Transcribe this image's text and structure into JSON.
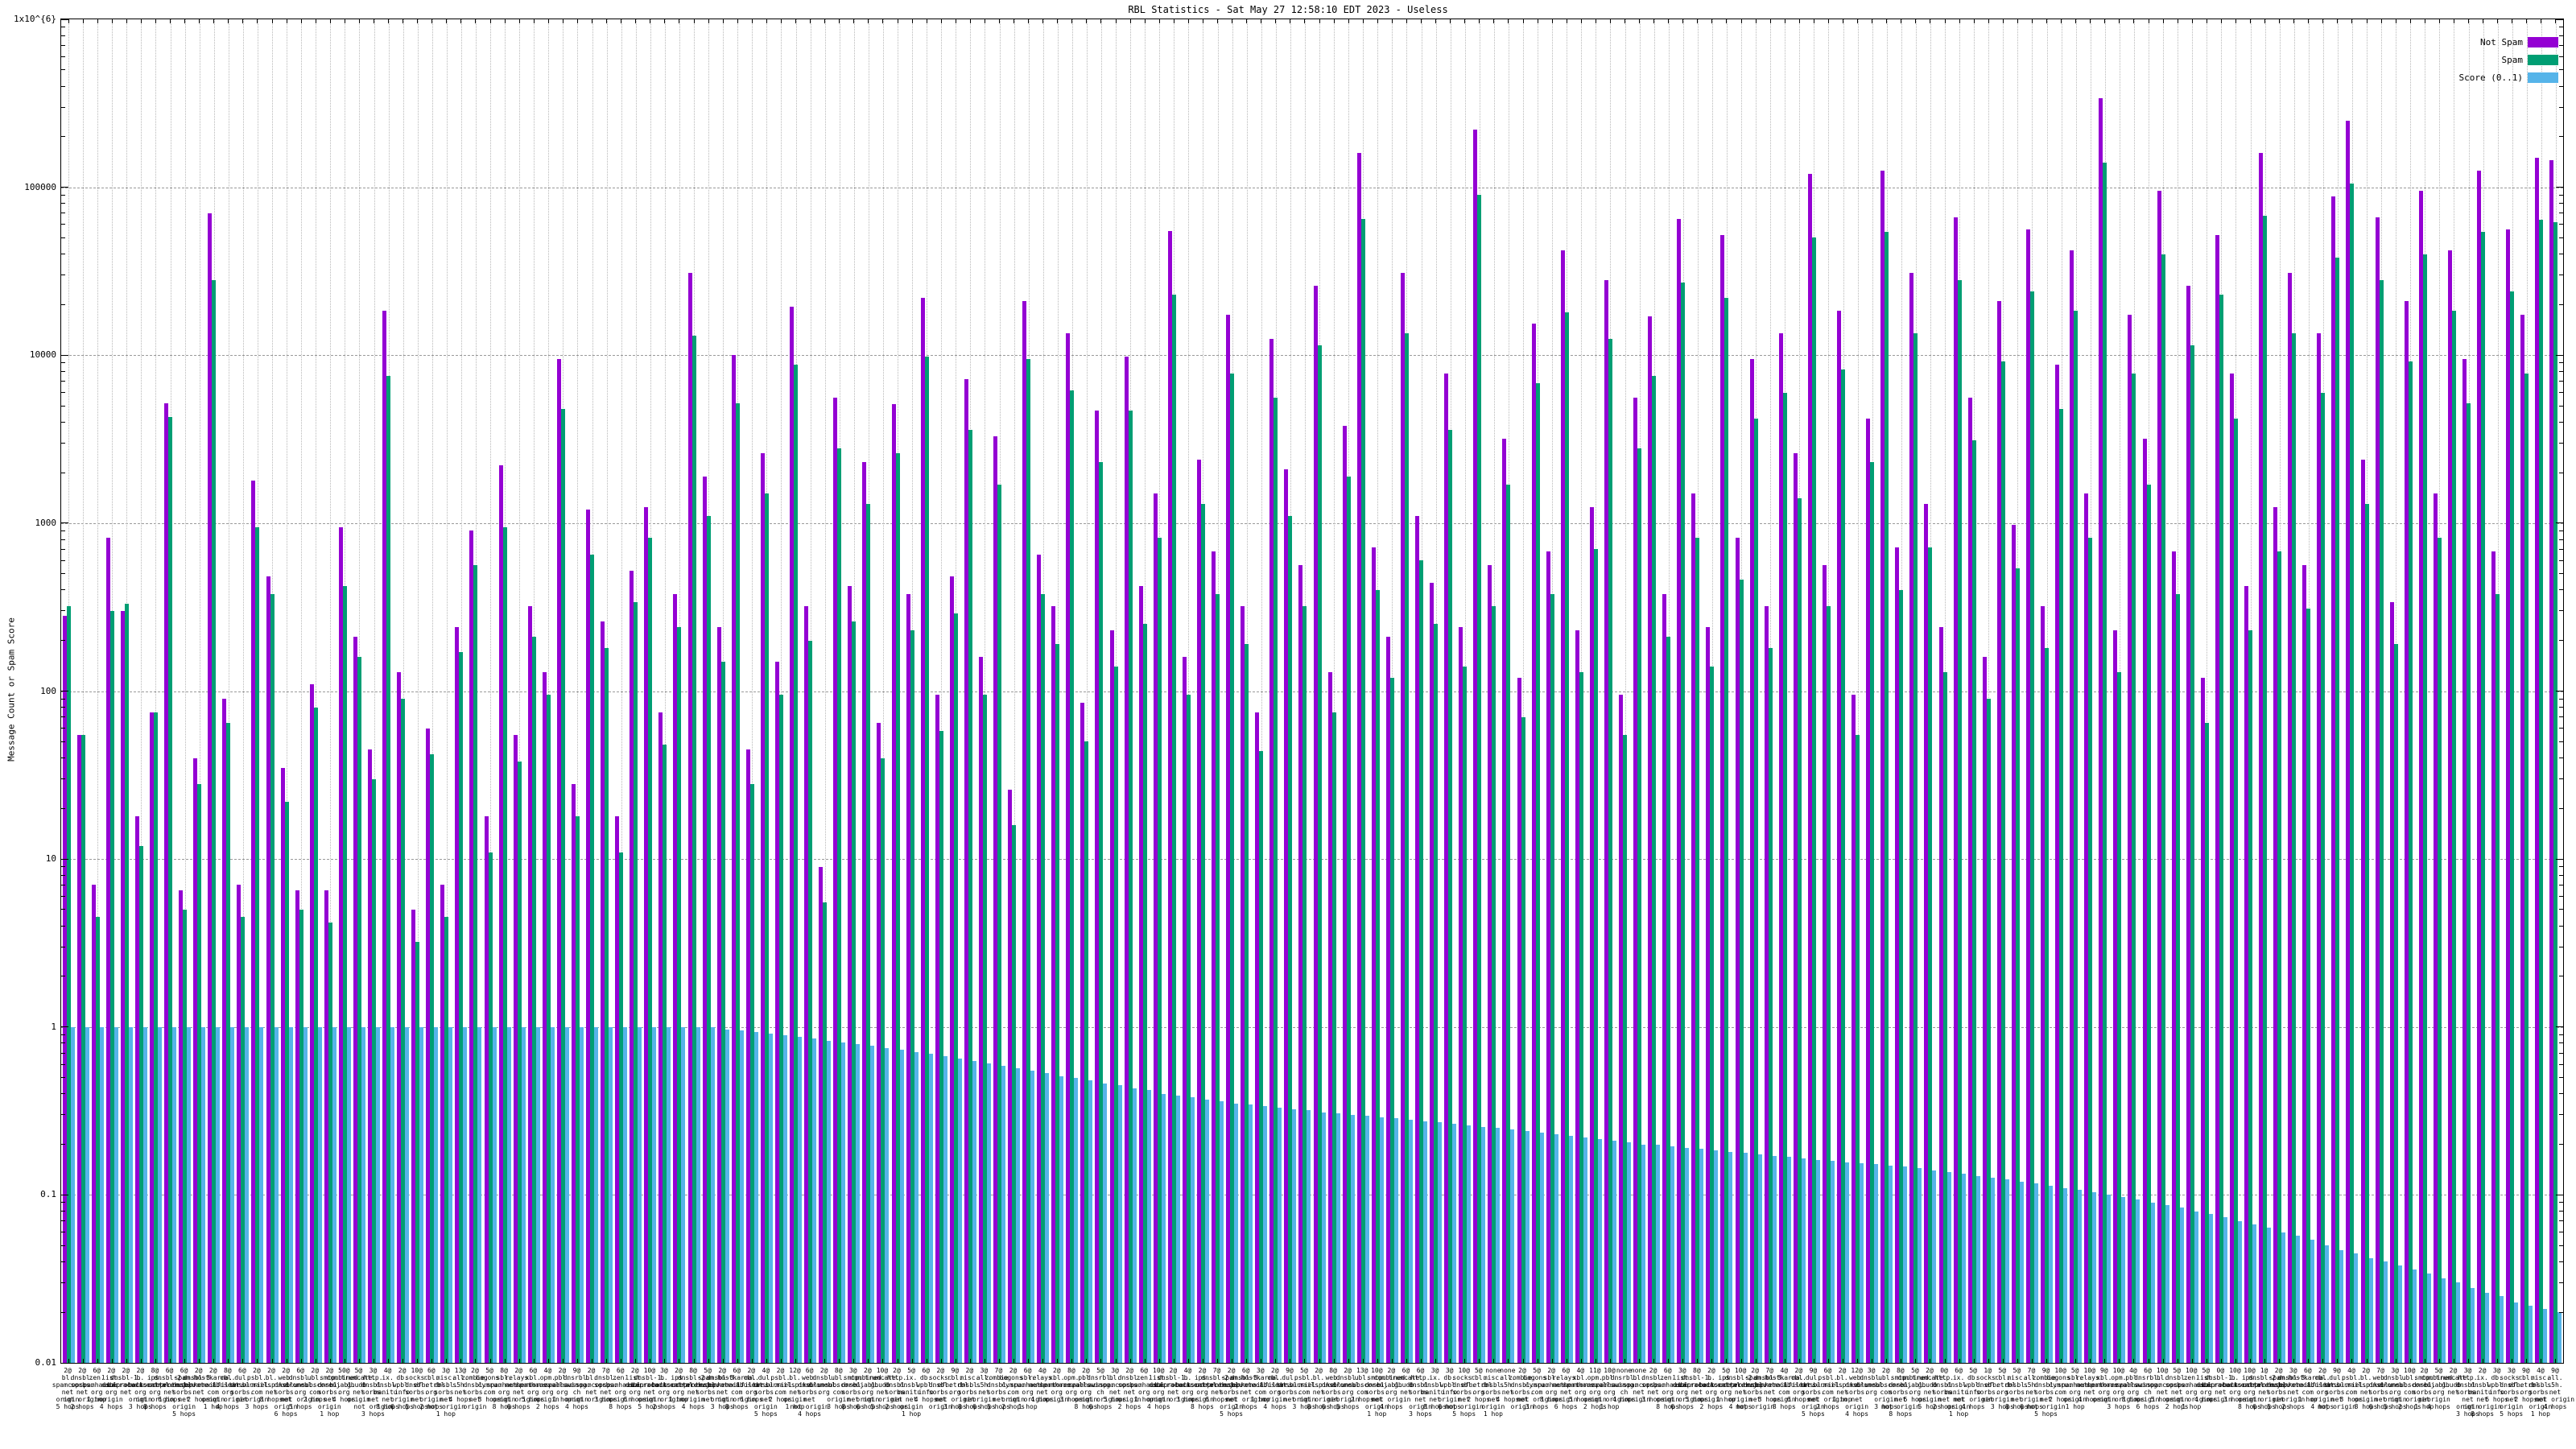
{
  "chart_data": {
    "type": "bar",
    "title": "RBL Statistics - Sat May 27 12:58:10 EDT 2023 - Useless",
    "ylabel": "Message Count or Spam Score",
    "xlabel": "",
    "y_scale": "log",
    "ylim": [
      0.01,
      1000000
    ],
    "y_ticks": [
      "1x10^{6}",
      "100000",
      "10000",
      "1000",
      "100",
      "10",
      "1",
      "0.1",
      "0.01"
    ],
    "grid": "on",
    "legend_position": "top-right",
    "legend": [
      {
        "label": "Not Spam",
        "color": "#9400d3"
      },
      {
        "label": "Spam",
        "color": "#009e73"
      },
      {
        "label": "Score (0..1)",
        "color": "#56b4e9"
      }
    ],
    "groups": {
      "weights": [
        "2@",
        "2@",
        "6@",
        "2@",
        "2@",
        "2@",
        "8@",
        "6@",
        "6@",
        "2@",
        "2@",
        "8@",
        "6@",
        "2@",
        "2@",
        "2@",
        "6@",
        "2@",
        "2@",
        "50@",
        "5@",
        "3@",
        "4@",
        "2@",
        "10@",
        "6@",
        "3@",
        "13@",
        "2@",
        "5@",
        "8@",
        "2@",
        "6@",
        "4@",
        "2@",
        "9@",
        "2@",
        "7@",
        "6@",
        "2@",
        "10@",
        "3@",
        "2@",
        "8@",
        "5@",
        "2@",
        "6@",
        "2@",
        "4@",
        "2@",
        "12@",
        "6@",
        "2@",
        "8@",
        "3@",
        "2@",
        "10@",
        "2@",
        "5@",
        "6@",
        "2@",
        "9@",
        "2@",
        "3@",
        "7@",
        "2@",
        "6@",
        "4@",
        "2@",
        "8@",
        "2@",
        "5@",
        "3@",
        "2@",
        "6@",
        "10@",
        "2@",
        "4@",
        "2@",
        "7@",
        "2@",
        "6@",
        "3@",
        "2@",
        "9@",
        "5@",
        "2@",
        "8@",
        "2@",
        "13@",
        "10@",
        "2@",
        "6@",
        "6@",
        "3@",
        "3@",
        "10@",
        "5@",
        "none",
        "none",
        "2@",
        "5@",
        "2@",
        "6@",
        "4@",
        "11@",
        "10@",
        "none",
        "none",
        "2@",
        "6@",
        "3@",
        "8@",
        "2@",
        "5@",
        "10@",
        "2@",
        "7@",
        "4@",
        "2@",
        "9@",
        "6@",
        "2@",
        "12@",
        "3@",
        "2@",
        "8@",
        "5@",
        "2@",
        "0@",
        "6@",
        "5@",
        "1@",
        "5@",
        "5@",
        "7@",
        "9@",
        "10@",
        "5@",
        "10@",
        "9@",
        "10@",
        "4@",
        "6@",
        "10@",
        "5@",
        "10@",
        "5@",
        "0@",
        "10@",
        "10@",
        "1@",
        "2@",
        "3@",
        "6@",
        "2@",
        "9@",
        "4@",
        "2@",
        "7@",
        "3@",
        "10@",
        "2@",
        "5@",
        "2@",
        "3@",
        "2@",
        "3@",
        "3@",
        "9@",
        "4@",
        "9@"
      ],
      "host_pool": [
        "bl.spamcop.net",
        "dnsbl.sorbs.net",
        "zen.spamhaus.org",
        "list.dsbl.org",
        "dnsbl-1.uceprotect.net",
        "b.barracudacentral.org",
        "ips.backscatterer.org",
        "dnsbl-2.uceprotect.net",
        "spam.dnsbl.sorbs.net",
        "dnsbl-3.uceprotect.net",
        "hostkarma.junkemailfilter.com",
        "cbl.abuseat.org",
        "dul.dnsbl.sorbs.net",
        "psbl.surriel.com",
        "bl.mailspike.net",
        "web.dnsbl.sorbs.net",
        "dnsbl.dronebl.org",
        "ubl.unsubscore.com",
        "smtp.dnsbl.sorbs.net",
        "combined.njabl.org",
        "truncate.gbudb.net",
        "http.dnsbl.sorbs.net",
        "ix.dnsbl.manitu.net",
        "db.wpbl.info",
        "socks.dnsbl.sorbs.net",
        "rbl.efnetrbl.org",
        "misc.dnsbl.sorbs.net",
        "all.s5h.net",
        "zombie.dnsbl.sorbs.net",
        "bogons.cymru.com",
        "sbl.spamhaus.org",
        "relays.nether.net",
        "xbl.spamhaus.org",
        "opm.tornevall.org",
        "pbl.spamhaus.org",
        "dnsrbl.swinog.ch"
      ],
      "mode_pool": [
        "origin",
        "not origin",
        "",
        "origin",
        ""
      ],
      "hops_pool": [
        "5 hops",
        "2 hops",
        "1 hop",
        "4 hops",
        "",
        "3 hops",
        "8 hops",
        "6 hops"
      ]
    },
    "series": [
      {
        "name": "Not Spam",
        "color": "#9400d3",
        "values": [
          280,
          55,
          7,
          820,
          300,
          18,
          75,
          5200,
          6.5,
          40,
          70000,
          90,
          7,
          1800,
          480,
          35,
          6.5,
          110,
          6.5,
          950,
          210,
          45,
          18500,
          130,
          5,
          60,
          7,
          240,
          900,
          18,
          2200,
          55,
          320,
          130,
          9500,
          28,
          1200,
          260,
          18,
          520,
          1250,
          75,
          380,
          31000,
          1900,
          240,
          10000,
          45,
          2600,
          150,
          19500,
          320,
          9,
          5600,
          420,
          2300,
          65,
          5100,
          380,
          22000,
          95,
          480,
          7200,
          160,
          3300,
          26,
          21000,
          650,
          320,
          13500,
          85,
          4700,
          230,
          9800,
          420,
          1500,
          55000,
          160,
          2400,
          680,
          17500,
          320,
          75,
          12500,
          2100,
          560,
          26000,
          130,
          3800,
          160000,
          720,
          210,
          31000,
          1100,
          440,
          7800,
          240,
          220000,
          560,
          3200,
          120,
          15500,
          680,
          42000,
          230,
          1250,
          28000,
          95,
          5600,
          17000,
          380,
          65000,
          1500,
          240,
          52000,
          820,
          9500,
          320,
          13500,
          2600,
          120000,
          560,
          18500,
          95,
          4200,
          125000,
          720,
          31000,
          1300,
          240,
          66000,
          5600,
          160,
          21000,
          980,
          56000,
          320,
          8800,
          42000,
          1500,
          340000,
          230,
          17500,
          3200,
          95000,
          680,
          26000,
          120,
          52000,
          7800,
          420,
          160000,
          1250,
          31000,
          560,
          13500,
          88000,
          250000,
          2400,
          66000,
          340,
          21000,
          95000,
          1500,
          42000,
          9500,
          125000,
          680,
          56000,
          17500,
          150000,
          145000
        ]
      },
      {
        "name": "Spam",
        "color": "#009e73",
        "values": [
          320,
          55,
          4.5,
          300,
          330,
          12,
          75,
          4300,
          5,
          28,
          28000,
          65,
          4.5,
          950,
          380,
          22,
          5,
          80,
          4.2,
          420,
          160,
          30,
          7500,
          90,
          3.2,
          42,
          4.5,
          170,
          560,
          11,
          950,
          38,
          210,
          95,
          4800,
          18,
          650,
          180,
          11,
          340,
          820,
          48,
          240,
          13000,
          1100,
          150,
          5200,
          28,
          1500,
          95,
          8800,
          200,
          5.5,
          2800,
          260,
          1300,
          40,
          2600,
          230,
          9800,
          58,
          290,
          3600,
          95,
          1700,
          16,
          9500,
          380,
          190,
          6200,
          50,
          2300,
          140,
          4700,
          250,
          820,
          23000,
          95,
          1300,
          380,
          7800,
          190,
          44,
          5600,
          1100,
          320,
          11500,
          75,
          1900,
          65000,
          400,
          120,
          13500,
          600,
          250,
          3600,
          140,
          90000,
          320,
          1700,
          70,
          6800,
          380,
          18000,
          130,
          700,
          12500,
          55,
          2800,
          7500,
          210,
          27000,
          820,
          140,
          22000,
          460,
          4200,
          180,
          6000,
          1400,
          50000,
          320,
          8200,
          55,
          2300,
          54000,
          400,
          13500,
          720,
          130,
          28000,
          3100,
          90,
          9200,
          540,
          24000,
          180,
          4800,
          18500,
          820,
          140000,
          130,
          7800,
          1700,
          40000,
          380,
          11500,
          65,
          23000,
          4200,
          230,
          68000,
          680,
          13500,
          310,
          6000,
          38000,
          105000,
          1300,
          28000,
          190,
          9200,
          40000,
          820,
          18500,
          5200,
          54000,
          380,
          24000,
          7800,
          64000,
          62000
        ]
      },
      {
        "name": "Score (0..1)",
        "color": "#56b4e9",
        "values": [
          1,
          1,
          1,
          1,
          1,
          1,
          1,
          1,
          1,
          1,
          1,
          1,
          1,
          1,
          1,
          1,
          1,
          1,
          1,
          1,
          1,
          1,
          1,
          1,
          1,
          1,
          1,
          1,
          1,
          1,
          1,
          1,
          1,
          1,
          1,
          1,
          1,
          1,
          1,
          1,
          1,
          1,
          1,
          1,
          1,
          0.97,
          0.95,
          0.93,
          0.91,
          0.89,
          0.87,
          0.85,
          0.83,
          0.81,
          0.79,
          0.77,
          0.75,
          0.73,
          0.71,
          0.69,
          0.67,
          0.65,
          0.63,
          0.61,
          0.59,
          0.57,
          0.55,
          0.53,
          0.51,
          0.5,
          0.48,
          0.46,
          0.45,
          0.43,
          0.42,
          0.4,
          0.39,
          0.38,
          0.37,
          0.36,
          0.35,
          0.345,
          0.34,
          0.33,
          0.325,
          0.32,
          0.31,
          0.305,
          0.3,
          0.295,
          0.29,
          0.285,
          0.28,
          0.275,
          0.27,
          0.265,
          0.26,
          0.255,
          0.25,
          0.245,
          0.24,
          0.235,
          0.23,
          0.225,
          0.22,
          0.215,
          0.21,
          0.205,
          0.2,
          0.198,
          0.195,
          0.19,
          0.188,
          0.185,
          0.18,
          0.178,
          0.175,
          0.17,
          0.168,
          0.165,
          0.162,
          0.16,
          0.157,
          0.155,
          0.152,
          0.15,
          0.147,
          0.144,
          0.14,
          0.137,
          0.134,
          0.13,
          0.127,
          0.124,
          0.12,
          0.117,
          0.114,
          0.11,
          0.107,
          0.104,
          0.1,
          0.097,
          0.094,
          0.09,
          0.087,
          0.084,
          0.08,
          0.077,
          0.074,
          0.07,
          0.067,
          0.064,
          0.06,
          0.057,
          0.054,
          0.05,
          0.047,
          0.045,
          0.042,
          0.04,
          0.038,
          0.036,
          0.034,
          0.032,
          0.03,
          0.028,
          0.026,
          0.025,
          0.023,
          0.022,
          0.021,
          0.02
        ]
      }
    ]
  }
}
